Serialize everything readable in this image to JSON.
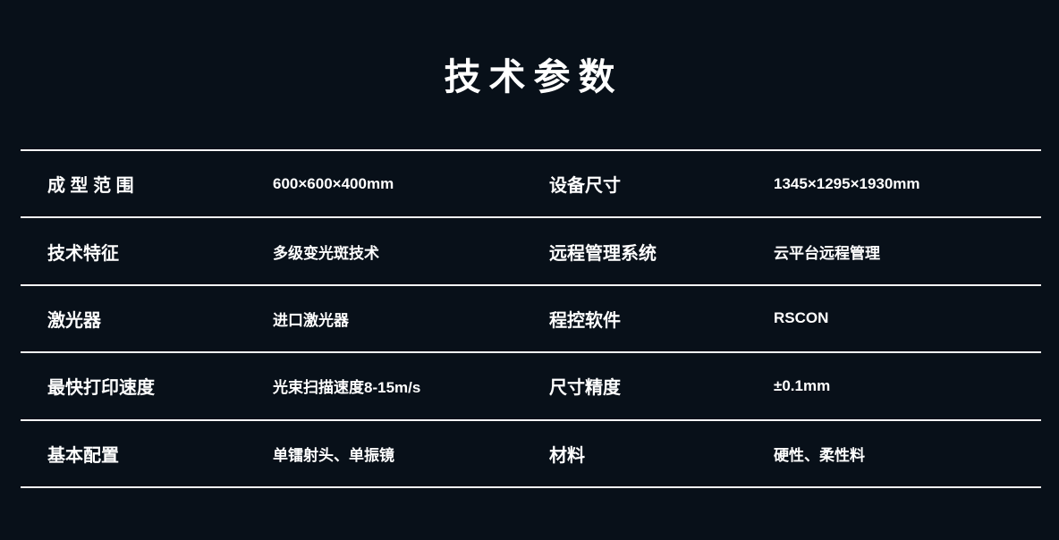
{
  "page": {
    "title": "技术参数"
  },
  "colors": {
    "background": "#081019",
    "text": "#ffffff",
    "divider": "#f7f7f7"
  },
  "table": {
    "rows": [
      {
        "left": {
          "label": "成 型 范 围",
          "value": "600×600×400mm"
        },
        "right": {
          "label": "设备尺寸",
          "value": "1345×1295×1930mm"
        }
      },
      {
        "left": {
          "label": "技术特征",
          "value": "多级变光斑技术"
        },
        "right": {
          "label": "远程管理系统",
          "value": "云平台远程管理"
        }
      },
      {
        "left": {
          "label": "激光器",
          "value": "进口激光器"
        },
        "right": {
          "label": "程控软件",
          "value": "RSCON"
        }
      },
      {
        "left": {
          "label": "最快打印速度",
          "value": "光束扫描速度8-15m/s"
        },
        "right": {
          "label": "尺寸精度",
          "value": "±0.1mm"
        }
      },
      {
        "left": {
          "label": "基本配置",
          "value": "单镭射头、单振镜"
        },
        "right": {
          "label": "材料",
          "value": "硬性、柔性料"
        }
      }
    ]
  }
}
